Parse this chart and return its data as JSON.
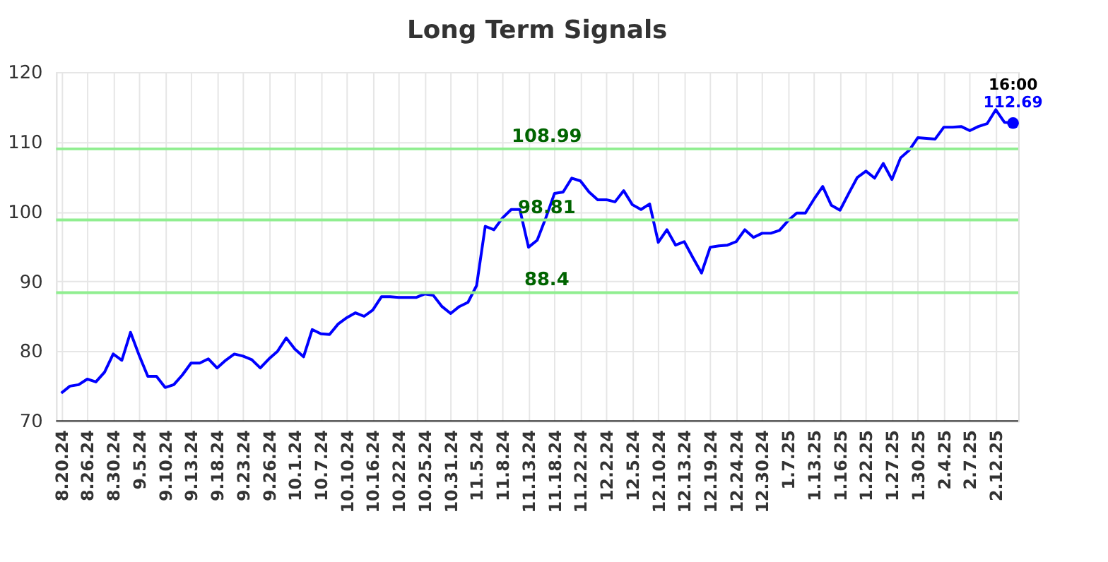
{
  "chart_data": {
    "type": "line",
    "title": "Long Term Signals",
    "categories": [
      "8.20.24",
      null,
      null,
      "8.26.24",
      null,
      null,
      "8.30.24",
      null,
      null,
      "9.5.24",
      null,
      null,
      "9.10.24",
      null,
      null,
      "9.13.24",
      null,
      null,
      "9.18.24",
      null,
      null,
      "9.23.24",
      null,
      null,
      "9.26.24",
      null,
      null,
      "10.1.24",
      null,
      null,
      "10.7.24",
      null,
      null,
      "10.10.24",
      null,
      null,
      "10.16.24",
      null,
      null,
      "10.22.24",
      null,
      null,
      "10.25.24",
      null,
      null,
      "10.31.24",
      null,
      null,
      "11.5.24",
      null,
      null,
      "11.8.24",
      null,
      null,
      "11.13.24",
      null,
      null,
      "11.18.24",
      null,
      null,
      "11.22.24",
      null,
      null,
      "12.2.24",
      null,
      null,
      "12.5.24",
      null,
      null,
      "12.10.24",
      null,
      null,
      "12.13.24",
      null,
      null,
      "12.19.24",
      null,
      null,
      "12.24.24",
      null,
      null,
      "12.30.24",
      null,
      null,
      "1.7.25",
      null,
      null,
      "1.13.25",
      null,
      null,
      "1.16.25",
      null,
      null,
      "1.22.25",
      null,
      null,
      "1.27.25",
      null,
      null,
      "1.30.25",
      null,
      null,
      "2.4.25",
      null,
      null,
      "2.7.25",
      null,
      null,
      "2.12.25",
      null,
      null
    ],
    "series": [
      {
        "color": "#0000ff",
        "values": [
          74.0,
          75.0,
          75.2,
          76.0,
          75.6,
          77.0,
          79.6,
          78.7,
          82.7,
          79.4,
          76.4,
          76.4,
          74.8,
          75.2,
          76.6,
          78.3,
          78.3,
          78.9,
          77.6,
          78.7,
          79.6,
          79.3,
          78.8,
          77.6,
          78.9,
          80.0,
          81.9,
          80.3,
          79.2,
          83.1,
          82.5,
          82.4,
          83.9,
          84.8,
          85.5,
          85.0,
          85.9,
          87.8,
          87.8,
          87.7,
          87.7,
          87.7,
          88.2,
          88.0,
          86.4,
          85.4,
          86.4,
          87.0,
          89.4,
          97.9,
          97.4,
          99.1,
          100.3,
          100.3,
          94.9,
          95.9,
          99.1,
          102.6,
          102.8,
          104.8,
          104.4,
          102.8,
          101.7,
          101.7,
          101.4,
          103.0,
          101.0,
          100.3,
          101.1,
          95.6,
          97.4,
          95.2,
          95.7,
          93.4,
          91.2,
          94.9,
          95.1,
          95.2,
          95.7,
          97.4,
          96.3,
          96.9,
          96.9,
          97.3,
          98.7,
          99.8,
          99.8,
          101.8,
          103.6,
          100.9,
          100.2,
          102.6,
          104.9,
          105.8,
          104.8,
          106.9,
          104.6,
          107.7,
          108.8,
          110.6,
          110.5,
          110.4,
          112.1,
          112.1,
          112.2,
          111.6,
          112.2,
          112.6,
          114.6,
          112.8,
          112.69
        ]
      },
      {
        "type": "scatter",
        "color": "#0000ff",
        "marker": "circle",
        "values": [
          null,
          null,
          null,
          null,
          null,
          null,
          null,
          null,
          null,
          null,
          null,
          null,
          null,
          null,
          null,
          null,
          null,
          null,
          null,
          null,
          null,
          null,
          null,
          null,
          null,
          null,
          null,
          null,
          null,
          null,
          null,
          null,
          null,
          null,
          null,
          null,
          null,
          null,
          null,
          null,
          null,
          null,
          null,
          null,
          null,
          null,
          null,
          null,
          null,
          null,
          null,
          null,
          null,
          null,
          null,
          null,
          null,
          null,
          null,
          null,
          null,
          null,
          null,
          null,
          null,
          null,
          null,
          null,
          null,
          null,
          null,
          null,
          null,
          null,
          null,
          null,
          null,
          null,
          null,
          null,
          null,
          null,
          null,
          null,
          null,
          null,
          null,
          null,
          null,
          null,
          null,
          null,
          null,
          null,
          null,
          null,
          null,
          null,
          null,
          null,
          null,
          null,
          null,
          null,
          null,
          null,
          null,
          null,
          null,
          null,
          112.69
        ]
      }
    ],
    "ylim": [
      70,
      120
    ],
    "yticks": [
      70,
      80,
      90,
      100,
      110,
      120
    ],
    "grid": true,
    "ref_lines": [
      {
        "axis": "y",
        "value": 108.99,
        "label": "108.99",
        "color": "#90ee90"
      },
      {
        "axis": "y",
        "value": 98.81,
        "label": "98.81",
        "color": "#90ee90"
      },
      {
        "axis": "y",
        "value": 88.4,
        "label": "88.4",
        "color": "#90ee90"
      }
    ],
    "annotations": [
      {
        "text": "16:00",
        "y": 112.69
      },
      {
        "text": "112.69",
        "y": 112.69
      }
    ]
  }
}
